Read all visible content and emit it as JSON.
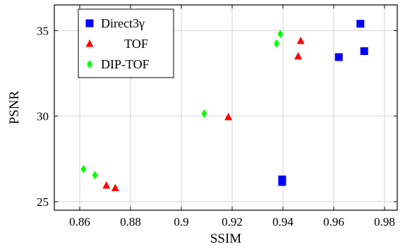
{
  "chart_data": {
    "type": "scatter",
    "xlabel": "SSIM",
    "ylabel": "PSNR",
    "xlim": [
      0.85,
      0.985
    ],
    "ylim": [
      24.5,
      36.5
    ],
    "xticks": [
      0.86,
      0.88,
      0.9,
      0.92,
      0.94,
      0.96,
      0.98
    ],
    "xtick_labels": [
      "0.86",
      "0.88",
      "0.9",
      "0.92",
      "0.94",
      "0.96",
      "0.98"
    ],
    "yticks": [
      25,
      30,
      35
    ],
    "ytick_labels": [
      "25",
      "30",
      "35"
    ],
    "grid": true,
    "legend_position": "top-left",
    "series": [
      {
        "name": "Direct3γ",
        "marker": "square",
        "color": "#0000ff",
        "points": [
          [
            0.9705,
            35.4
          ],
          [
            0.972,
            33.8
          ],
          [
            0.962,
            33.45
          ],
          [
            0.9397,
            26.3
          ],
          [
            0.9397,
            26.15
          ]
        ]
      },
      {
        "name": "TOF",
        "marker": "triangle",
        "color": "#ff0000",
        "points": [
          [
            0.947,
            34.4
          ],
          [
            0.946,
            33.5
          ],
          [
            0.9185,
            29.95
          ],
          [
            0.8705,
            25.95
          ],
          [
            0.874,
            25.8
          ]
        ]
      },
      {
        "name": "DIP-TOF",
        "marker": "diamond",
        "color": "#00ff00",
        "points": [
          [
            0.939,
            34.8
          ],
          [
            0.9375,
            34.25
          ],
          [
            0.909,
            30.15
          ],
          [
            0.8615,
            26.9
          ],
          [
            0.866,
            26.55
          ]
        ]
      }
    ]
  }
}
